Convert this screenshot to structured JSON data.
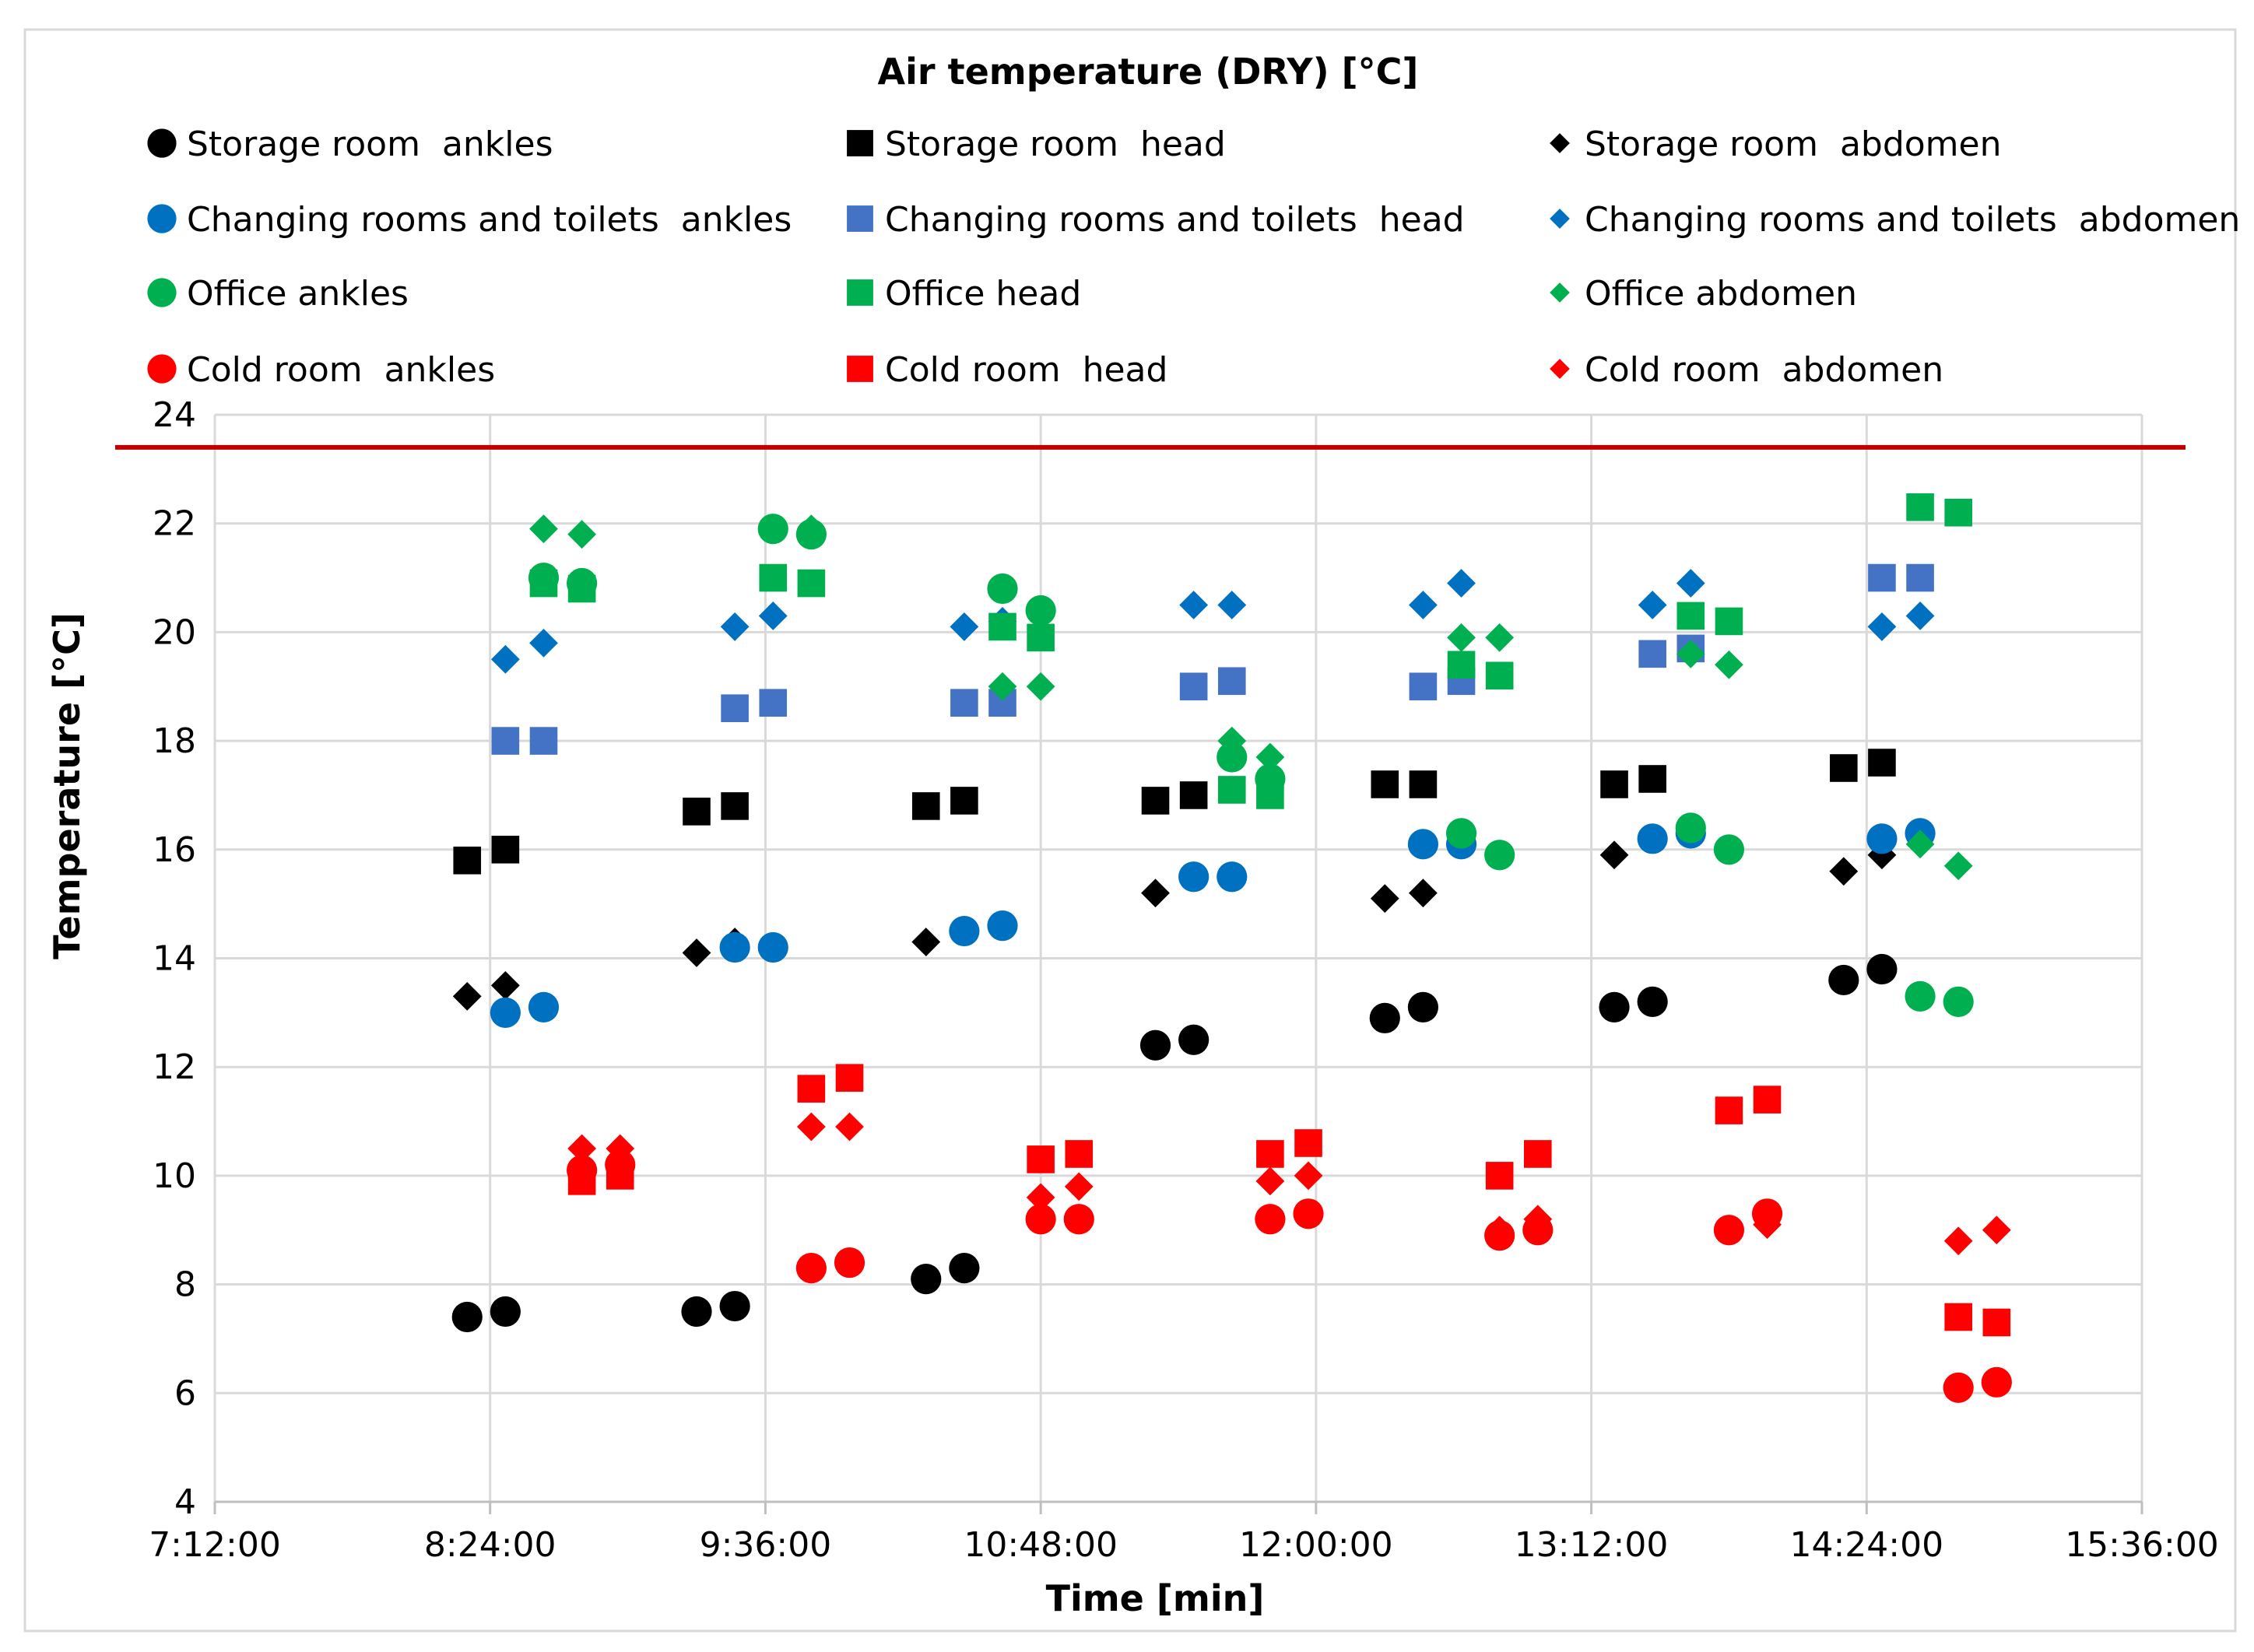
{
  "chart_data": {
    "type": "scatter",
    "title": "Air temperature (DRY) [°C]",
    "xlabel": "Time [min]",
    "ylabel": "Temperature [°C]",
    "xlim_minutes": [
      432,
      936
    ],
    "ylim": [
      4,
      24
    ],
    "x_ticks": [
      {
        "label": "7:12:00",
        "value": 432
      },
      {
        "label": "8:24:00",
        "value": 504
      },
      {
        "label": "9:36:00",
        "value": 576
      },
      {
        "label": "10:48:00",
        "value": 648
      },
      {
        "label": "12:00:00",
        "value": 720
      },
      {
        "label": "13:12:00",
        "value": 792
      },
      {
        "label": "14:24:00",
        "value": 864
      },
      {
        "label": "15:36:00",
        "value": 936
      }
    ],
    "y_ticks": [
      4,
      6,
      8,
      10,
      12,
      14,
      16,
      18,
      20,
      22,
      24
    ],
    "grid": true,
    "legend_position": "top",
    "reference_line": {
      "y": 23.4,
      "color": "#c00000"
    },
    "series": [
      {
        "name": "Storage room  ankles",
        "color": "#000000",
        "marker": "circle",
        "x": [
          498,
          508,
          558,
          568,
          618,
          628,
          678,
          688,
          738,
          748,
          798,
          808,
          858,
          868
        ],
        "y": [
          7.4,
          7.5,
          7.5,
          7.6,
          8.1,
          8.3,
          12.4,
          12.5,
          12.9,
          13.1,
          13.1,
          13.2,
          13.6,
          13.8
        ]
      },
      {
        "name": "Storage room  head",
        "color": "#000000",
        "marker": "square",
        "x": [
          498,
          508,
          558,
          568,
          618,
          628,
          678,
          688,
          738,
          748,
          798,
          808,
          858,
          868
        ],
        "y": [
          15.8,
          16.0,
          16.7,
          16.8,
          16.8,
          16.9,
          16.9,
          17.0,
          17.2,
          17.2,
          17.2,
          17.3,
          17.5,
          17.6
        ]
      },
      {
        "name": "Storage room  abdomen",
        "color": "#000000",
        "marker": "diamond",
        "x": [
          498,
          508,
          558,
          568,
          618,
          678,
          738,
          748,
          798,
          858,
          868
        ],
        "y": [
          13.3,
          13.5,
          14.1,
          14.3,
          14.3,
          15.2,
          15.1,
          15.2,
          15.9,
          15.6,
          15.9
        ]
      },
      {
        "name": "Changing rooms and toilets  ankles",
        "color": "#0070c0",
        "marker": "circle",
        "x": [
          508,
          518,
          568,
          578,
          628,
          638,
          688,
          698,
          748,
          758,
          808,
          818,
          868,
          878
        ],
        "y": [
          13.0,
          13.1,
          14.2,
          14.2,
          14.5,
          14.6,
          15.5,
          15.5,
          16.1,
          16.1,
          16.2,
          16.3,
          16.2,
          16.3
        ]
      },
      {
        "name": "Changing rooms and toilets  head",
        "color": "#4472c4",
        "marker": "square",
        "x": [
          508,
          518,
          568,
          578,
          628,
          638,
          688,
          698,
          748,
          758,
          808,
          818,
          868,
          878
        ],
        "y": [
          18.0,
          18.0,
          18.6,
          18.7,
          18.7,
          18.7,
          19.0,
          19.1,
          19.0,
          19.1,
          19.6,
          19.7,
          21.0,
          21.0
        ]
      },
      {
        "name": "Changing rooms and toilets  abdomen",
        "color": "#0070c0",
        "marker": "diamond",
        "x": [
          508,
          518,
          568,
          578,
          628,
          638,
          688,
          698,
          748,
          758,
          808,
          818,
          868,
          878
        ],
        "y": [
          19.5,
          19.8,
          20.1,
          20.3,
          20.1,
          20.2,
          20.5,
          20.5,
          20.5,
          20.9,
          20.5,
          20.9,
          20.1,
          20.3
        ]
      },
      {
        "name": "Office ankles",
        "color": "#00b050",
        "marker": "circle",
        "x": [
          518,
          528,
          578,
          588,
          638,
          648,
          698,
          708,
          758,
          768,
          818,
          828,
          878,
          888
        ],
        "y": [
          21.0,
          20.9,
          21.9,
          21.8,
          20.8,
          20.4,
          17.7,
          17.3,
          16.3,
          15.9,
          16.4,
          16.0,
          13.3,
          13.2
        ]
      },
      {
        "name": "Office head",
        "color": "#00b050",
        "marker": "square",
        "x": [
          518,
          528,
          578,
          588,
          638,
          648,
          698,
          708,
          758,
          768,
          818,
          828,
          878,
          888
        ],
        "y": [
          20.9,
          20.8,
          21.0,
          20.9,
          20.1,
          19.9,
          17.1,
          17.0,
          19.4,
          19.2,
          20.3,
          20.2,
          22.3,
          22.2
        ]
      },
      {
        "name": "Office abdomen",
        "color": "#00b050",
        "marker": "diamond",
        "x": [
          518,
          528,
          578,
          588,
          638,
          648,
          698,
          708,
          758,
          768,
          818,
          828,
          878,
          888
        ],
        "y": [
          21.9,
          21.8,
          21.9,
          21.9,
          19.0,
          19.0,
          18.0,
          17.7,
          19.9,
          19.9,
          19.6,
          19.4,
          16.1,
          15.7
        ]
      },
      {
        "name": "Cold room  ankles",
        "color": "#ff0000",
        "marker": "circle",
        "x": [
          528,
          538,
          588,
          598,
          648,
          658,
          708,
          718,
          768,
          778,
          828,
          838,
          888,
          898
        ],
        "y": [
          10.1,
          10.2,
          8.3,
          8.4,
          9.2,
          9.2,
          9.2,
          9.3,
          8.9,
          9.0,
          9.0,
          9.3,
          6.1,
          6.2
        ]
      },
      {
        "name": "Cold room  head",
        "color": "#ff0000",
        "marker": "square",
        "x": [
          528,
          538,
          588,
          598,
          648,
          658,
          708,
          718,
          768,
          778,
          828,
          838,
          888,
          898
        ],
        "y": [
          9.9,
          10.0,
          11.6,
          11.8,
          10.3,
          10.4,
          10.4,
          10.6,
          10.0,
          10.4,
          11.2,
          11.4,
          7.4,
          7.3
        ]
      },
      {
        "name": "Cold room  abdomen",
        "color": "#ff0000",
        "marker": "diamond",
        "x": [
          528,
          538,
          588,
          598,
          648,
          658,
          708,
          718,
          768,
          778,
          828,
          838,
          888,
          898
        ],
        "y": [
          10.5,
          10.5,
          10.9,
          10.9,
          9.6,
          9.8,
          9.9,
          10.0,
          9.0,
          9.2,
          9.0,
          9.1,
          8.8,
          9.0
        ]
      }
    ]
  }
}
